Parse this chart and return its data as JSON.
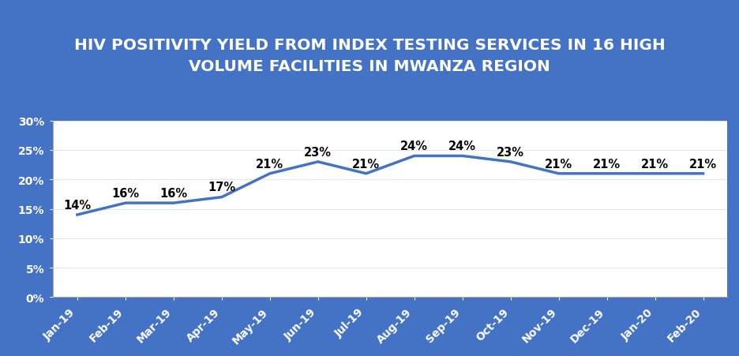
{
  "title": "HIV POSITIVITY YIELD FROM INDEX TESTING SERVICES IN 16 HIGH\nVOLUME FACILITIES IN MWANZA REGION",
  "categories": [
    "Jan-19",
    "Feb-19",
    "Mar-19",
    "Apr-19",
    "May-19",
    "Jun-19",
    "Jul-19",
    "Aug-19",
    "Sep-19",
    "Oct-19",
    "Nov-19",
    "Dec-19",
    "Jan-20",
    "Feb-20"
  ],
  "values": [
    14,
    16,
    16,
    17,
    21,
    23,
    21,
    24,
    24,
    23,
    21,
    21,
    21,
    21
  ],
  "line_color": "#4472c4",
  "background_outer": "#4472c4",
  "background_plot": "#ffffff",
  "title_bg_color": "#e07820",
  "title_text_color": "#ffffff",
  "ytick_labels": [
    "0%",
    "5%",
    "10%",
    "15%",
    "20%",
    "25%",
    "30%"
  ],
  "ytick_values": [
    0,
    5,
    10,
    15,
    20,
    25,
    30
  ],
  "ylim": [
    0,
    30
  ],
  "label_fontsize": 10.5,
  "tick_fontsize": 10,
  "title_fontsize": 14.5
}
